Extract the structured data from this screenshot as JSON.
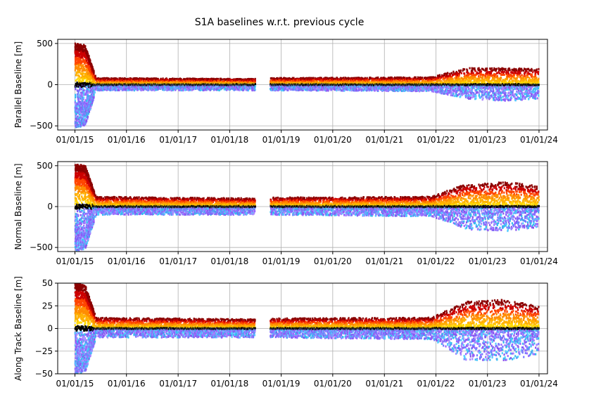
{
  "chart_data": {
    "type": "scatter",
    "title": "S1A baselines w.r.t. previous cycle",
    "x_ticks": [
      "01/01/15",
      "01/01/16",
      "01/01/17",
      "01/01/18",
      "01/01/19",
      "01/01/20",
      "01/01/21",
      "01/01/22",
      "01/01/23",
      "01/01/24"
    ],
    "xlim": [
      "2014-09-01",
      "2024-03-01"
    ],
    "grid": true,
    "data_gap": [
      "2018-07-01",
      "2018-10-15"
    ],
    "series_colors": {
      "positive": [
        "#ffd700",
        "#ffb000",
        "#ff8c00",
        "#ff4500",
        "#cc0000",
        "#8b0000"
      ],
      "negative": [
        "#9966ff",
        "#8855ee",
        "#aa88ff",
        "#55ccff",
        "#33bbee",
        "#7777ff"
      ],
      "near_zero": "#000000"
    },
    "panels": [
      {
        "id": "parallel",
        "ylabel": "Parallel Baseline [m]",
        "ylim": [
          -550,
          550
        ],
        "yticks": [
          -500,
          0,
          500
        ],
        "typical_positive_envelope": [
          {
            "x": "2015-01-01",
            "y": 500
          },
          {
            "x": "2015-03-15",
            "y": 480
          },
          {
            "x": "2015-06-01",
            "y": 80
          },
          {
            "x": "2018-06-30",
            "y": 70
          },
          {
            "x": "2018-11-01",
            "y": 80
          },
          {
            "x": "2021-12-01",
            "y": 90
          },
          {
            "x": "2022-08-01",
            "y": 200
          },
          {
            "x": "2023-06-01",
            "y": 200
          },
          {
            "x": "2023-12-31",
            "y": 190
          }
        ],
        "typical_negative_envelope": [
          {
            "x": "2015-01-01",
            "y": -520
          },
          {
            "x": "2015-03-15",
            "y": -500
          },
          {
            "x": "2015-06-01",
            "y": -70
          },
          {
            "x": "2018-06-30",
            "y": -70
          },
          {
            "x": "2018-11-01",
            "y": -70
          },
          {
            "x": "2021-12-01",
            "y": -80
          },
          {
            "x": "2022-08-01",
            "y": -170
          },
          {
            "x": "2023-06-01",
            "y": -200
          },
          {
            "x": "2023-12-31",
            "y": -170
          }
        ]
      },
      {
        "id": "normal",
        "ylabel": "Normal Baseline [m]",
        "ylim": [
          -550,
          550
        ],
        "yticks": [
          -500,
          0,
          500
        ],
        "typical_positive_envelope": [
          {
            "x": "2015-01-01",
            "y": 520
          },
          {
            "x": "2015-03-15",
            "y": 500
          },
          {
            "x": "2015-06-01",
            "y": 120
          },
          {
            "x": "2018-06-30",
            "y": 100
          },
          {
            "x": "2018-11-01",
            "y": 110
          },
          {
            "x": "2021-12-01",
            "y": 120
          },
          {
            "x": "2022-08-01",
            "y": 280
          },
          {
            "x": "2023-06-01",
            "y": 300
          },
          {
            "x": "2023-12-31",
            "y": 250
          }
        ],
        "typical_negative_envelope": [
          {
            "x": "2015-01-01",
            "y": -540
          },
          {
            "x": "2015-03-15",
            "y": -520
          },
          {
            "x": "2015-06-01",
            "y": -100
          },
          {
            "x": "2018-06-30",
            "y": -100
          },
          {
            "x": "2018-11-01",
            "y": -100
          },
          {
            "x": "2021-12-01",
            "y": -120
          },
          {
            "x": "2022-08-01",
            "y": -280
          },
          {
            "x": "2023-06-01",
            "y": -300
          },
          {
            "x": "2023-12-31",
            "y": -250
          }
        ]
      },
      {
        "id": "along",
        "ylabel": "Along Track Baseline [m]",
        "ylim": [
          -50,
          50
        ],
        "yticks": [
          -50,
          -25,
          0,
          25,
          50
        ],
        "typical_positive_envelope": [
          {
            "x": "2015-01-01",
            "y": 50
          },
          {
            "x": "2015-03-15",
            "y": 48
          },
          {
            "x": "2015-06-01",
            "y": 12
          },
          {
            "x": "2018-06-30",
            "y": 10
          },
          {
            "x": "2018-11-01",
            "y": 11
          },
          {
            "x": "2021-12-01",
            "y": 12
          },
          {
            "x": "2022-08-01",
            "y": 30
          },
          {
            "x": "2023-06-01",
            "y": 32
          },
          {
            "x": "2023-12-31",
            "y": 25
          }
        ],
        "typical_negative_envelope": [
          {
            "x": "2015-01-01",
            "y": -50
          },
          {
            "x": "2015-03-15",
            "y": -48
          },
          {
            "x": "2015-06-01",
            "y": -10
          },
          {
            "x": "2018-06-30",
            "y": -10
          },
          {
            "x": "2018-11-01",
            "y": -10
          },
          {
            "x": "2021-12-01",
            "y": -12
          },
          {
            "x": "2022-08-01",
            "y": -35
          },
          {
            "x": "2023-06-01",
            "y": -35
          },
          {
            "x": "2023-12-31",
            "y": -28
          }
        ]
      }
    ]
  }
}
